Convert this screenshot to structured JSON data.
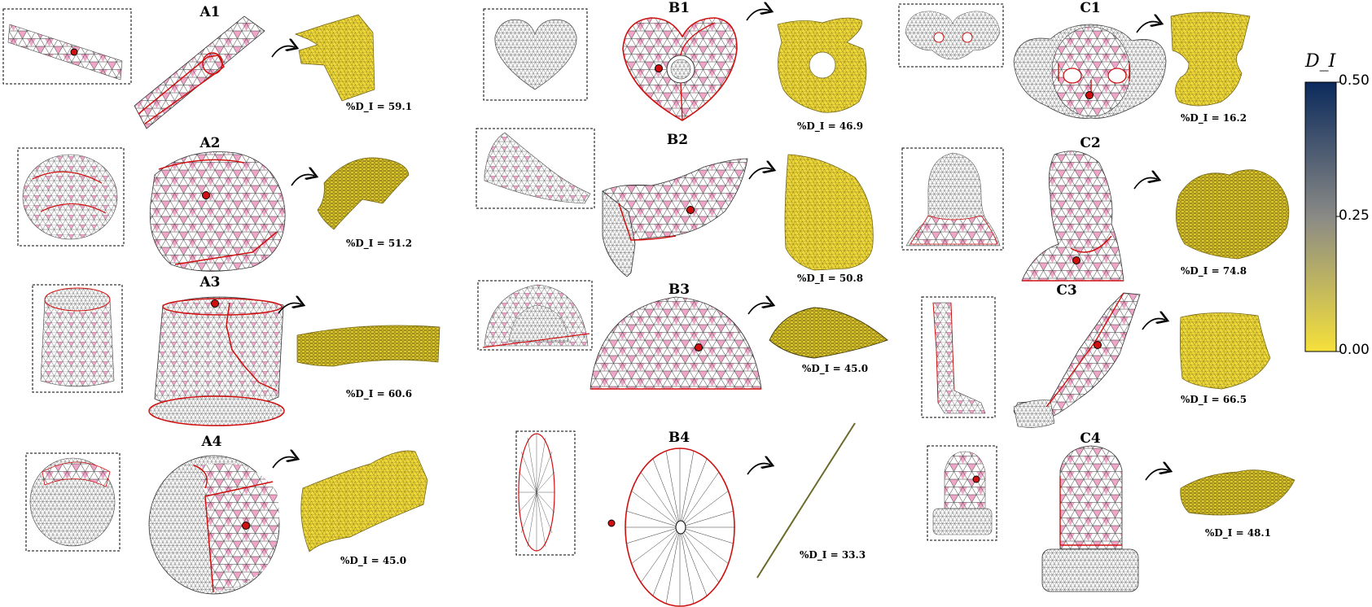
{
  "figure": {
    "panels": [
      {
        "id": "A1",
        "percent_label": "%D_I = 59.1",
        "percent_value": 59.1
      },
      {
        "id": "A2",
        "percent_label": "%D_I = 51.2",
        "percent_value": 51.2
      },
      {
        "id": "A3",
        "percent_label": "%D_I = 60.6",
        "percent_value": 60.6
      },
      {
        "id": "A4",
        "percent_label": "%D_I = 45.0",
        "percent_value": 45.0
      },
      {
        "id": "B1",
        "percent_label": "%D_I = 46.9",
        "percent_value": 46.9
      },
      {
        "id": "B2",
        "percent_label": "%D_I = 50.8",
        "percent_value": 50.8
      },
      {
        "id": "B3",
        "percent_label": "%D_I = 45.0",
        "percent_value": 45.0
      },
      {
        "id": "B4",
        "percent_label": "%D_I = 33.3",
        "percent_value": 33.3
      },
      {
        "id": "C1",
        "percent_label": "%D_I = 16.2",
        "percent_value": 16.2
      },
      {
        "id": "C2",
        "percent_label": "%D_I = 74.8",
        "percent_value": 74.8
      },
      {
        "id": "C3",
        "percent_label": "%D_I = 66.5",
        "percent_value": 66.5
      },
      {
        "id": "C4",
        "percent_label": "%D_I = 48.1",
        "percent_value": 48.1
      }
    ],
    "colorbar": {
      "title": "D_I",
      "ticks": [
        "0.50",
        "0.25",
        "0.00"
      ],
      "max": 0.5,
      "min": 0.0,
      "color_top": "#0b2a5c",
      "color_mid": "#8a8a86",
      "color_bottom": "#f5e03a"
    },
    "colors": {
      "mesh_pink": "#f0a6c8",
      "mesh_line": "#333333",
      "seam_red": "#d01010",
      "param_yellow": "#efd93a",
      "marker_red": "#d01010"
    }
  }
}
